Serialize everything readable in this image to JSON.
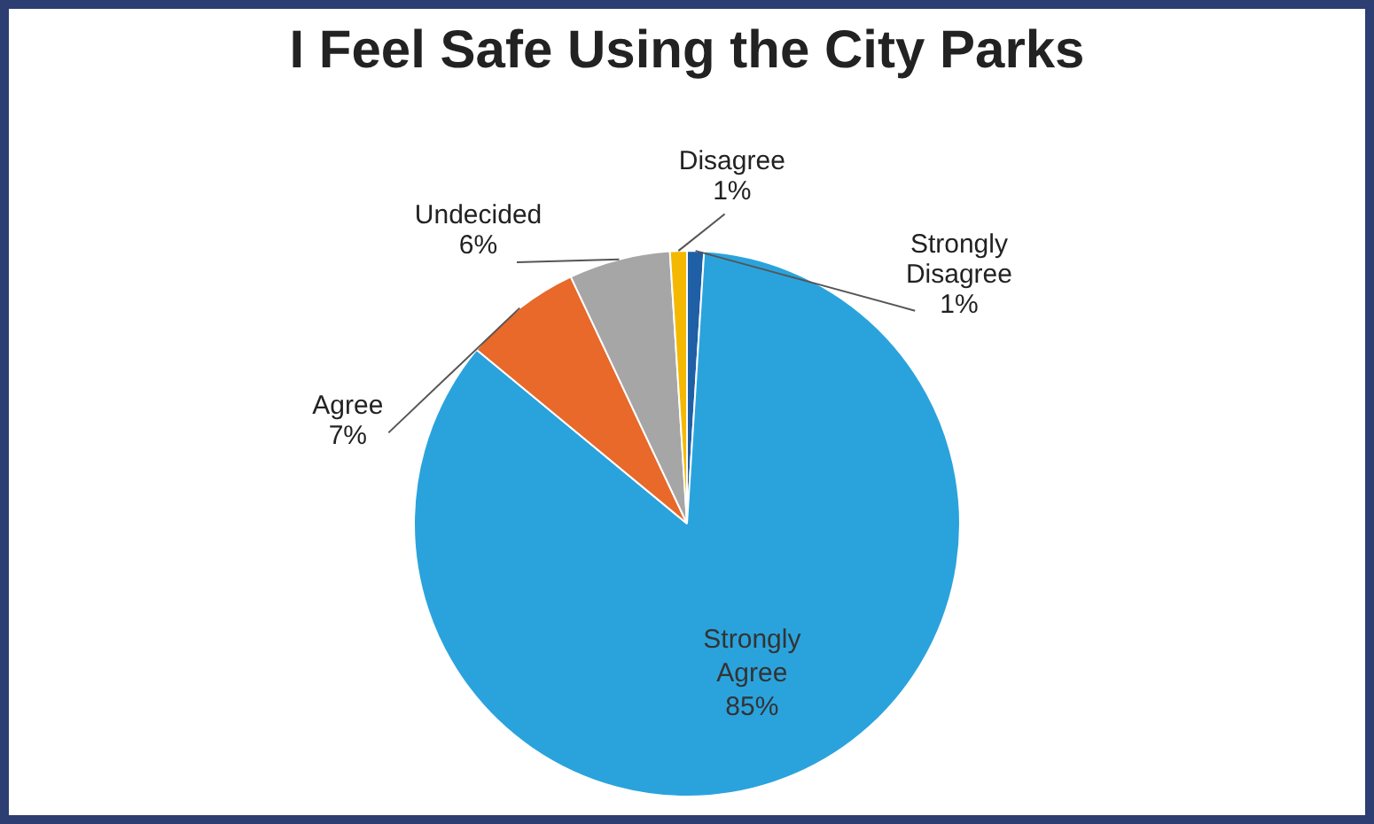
{
  "chart_data": {
    "type": "pie",
    "title": "I Feel Safe Using the City Parks",
    "categories": [
      "Strongly Disagree",
      "Strongly Agree",
      "Agree",
      "Undecided",
      "Disagree"
    ],
    "values": [
      1,
      85,
      7,
      6,
      1
    ],
    "colors": [
      "#1f5fa6",
      "#2aa3dd",
      "#e8692a",
      "#a6a6a6",
      "#f5b800"
    ],
    "value_labels": [
      "1%",
      "85%",
      "7%",
      "6%",
      "1%"
    ],
    "legend": false
  }
}
